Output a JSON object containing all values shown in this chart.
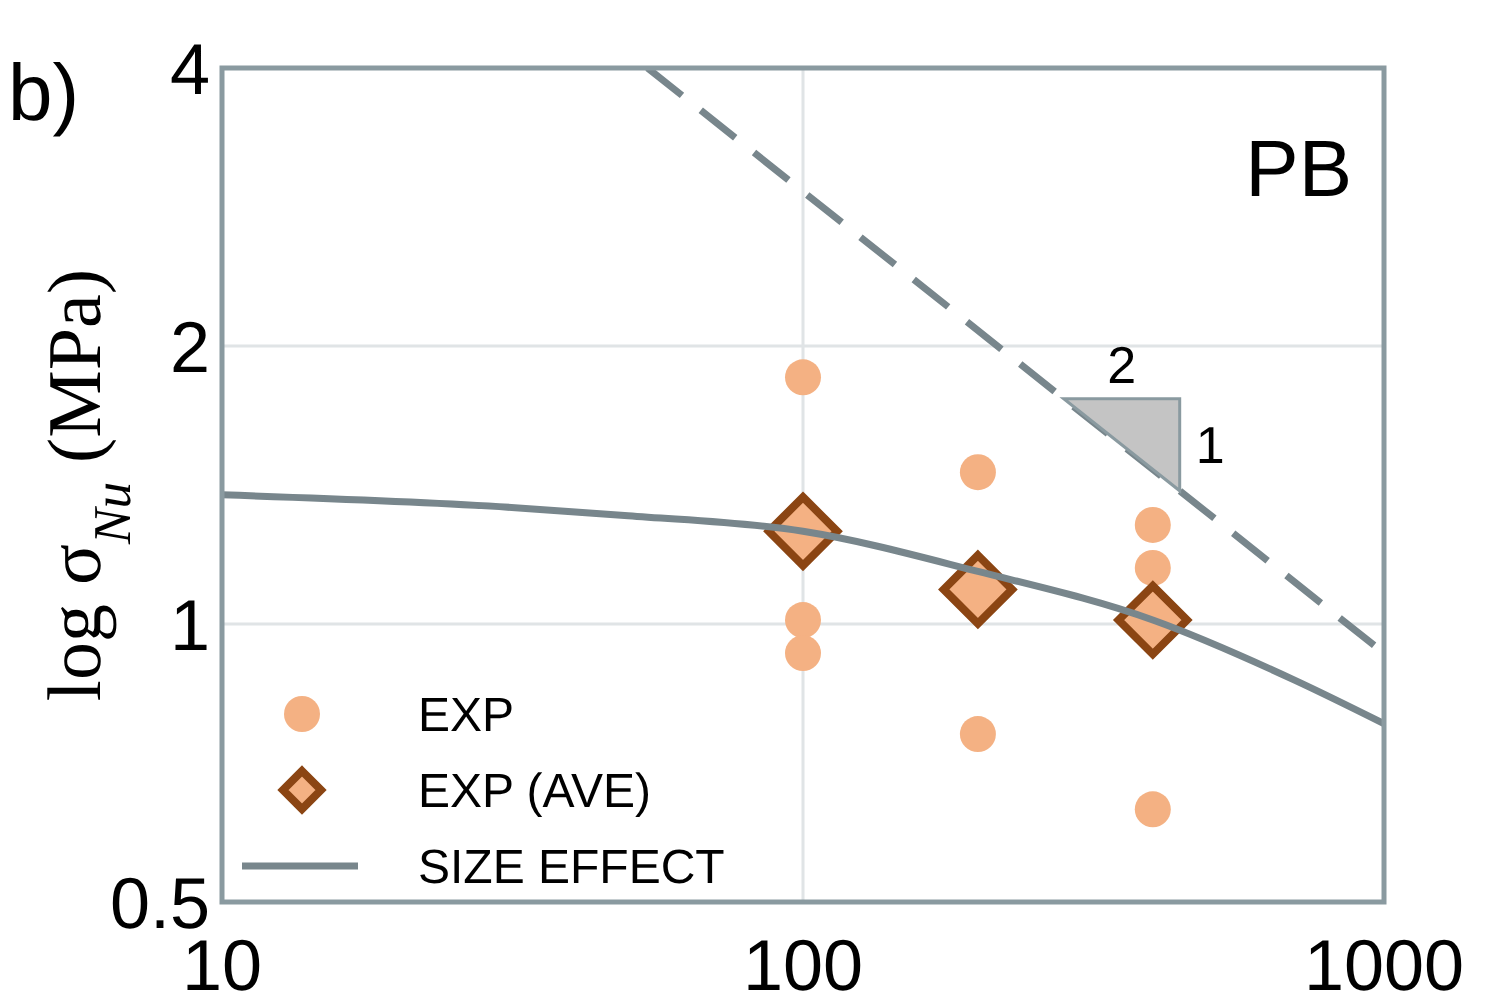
{
  "chart_data": {
    "type": "scatter",
    "ylabel": "log σ$_{Nu}$ (MPa)",
    "log": "xy",
    "xlim": [
      10,
      1000
    ],
    "ylim": [
      0.5,
      4
    ],
    "xticks": [
      10,
      100,
      1000
    ],
    "yticks": [
      0.5,
      1,
      2,
      4
    ],
    "grid": true,
    "legend": "bottom left",
    "annotations": [
      "b)",
      "PB",
      "2",
      "1"
    ],
    "series": [
      {
        "name": "EXP",
        "type": "scatter",
        "marker": "circle",
        "color": "#f4b183",
        "x": [
          100,
          100,
          100,
          200,
          200,
          400,
          400,
          400
        ],
        "values": [
          1.85,
          1.01,
          0.93,
          1.46,
          0.76,
          1.28,
          1.15,
          0.63
        ]
      },
      {
        "name": "EXP (AVE)",
        "type": "scatter",
        "marker": "diamond",
        "color": "#8b4513",
        "x": [
          100,
          200,
          400
        ],
        "values": [
          1.26,
          1.09,
          1.01
        ]
      },
      {
        "name": "SIZE EFFECT",
        "type": "line",
        "marker": "none",
        "line_style": "solid",
        "color": "#78868c",
        "x": [
          10,
          30,
          50,
          100,
          200,
          400,
          700,
          1000
        ],
        "values": [
          1.38,
          1.34,
          1.31,
          1.26,
          1.14,
          1.01,
          0.87,
          0.78
        ]
      },
      {
        "type": "line",
        "marker": "none",
        "line_style": "dashed",
        "color": "#78868c",
        "x": [
          54,
          1000
        ],
        "values": [
          4,
          0.93
        ]
      }
    ]
  }
}
